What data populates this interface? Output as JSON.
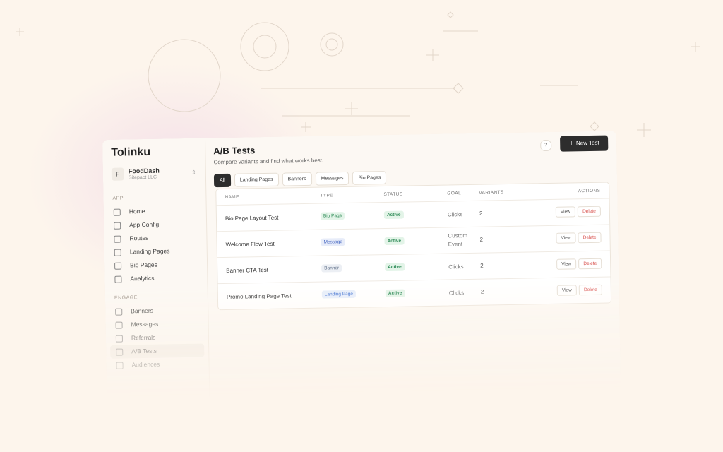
{
  "brand": "Tolinku",
  "org": {
    "initial": "F",
    "name": "FoodDash",
    "sub": "Sitepact LLC"
  },
  "sidebar": [
    {
      "section": "APP",
      "items": [
        "Home",
        "App Config",
        "Routes",
        "Landing Pages",
        "Bio Pages",
        "Analytics"
      ]
    },
    {
      "section": "ENGAGE",
      "items": [
        "Banners",
        "Messages",
        "Referrals",
        "A/B Tests",
        "Audiences"
      ]
    }
  ],
  "active_item": "A/B Tests",
  "header": {
    "title": "A/B Tests",
    "subtitle": "Compare variants and find what works best.",
    "help": "?",
    "button": "New Test"
  },
  "filters": [
    "All",
    "Landing Pages",
    "Banners",
    "Messages",
    "Bio Pages"
  ],
  "table": {
    "columns": [
      "NAME",
      "TYPE",
      "STATUS",
      "GOAL",
      "VARIANTS",
      "ACTIONS"
    ],
    "rows": [
      [
        "Bio Page Layout Test",
        "Bio Page",
        "Active",
        "Clicks",
        "2"
      ],
      [
        "Welcome Flow Test",
        "Message",
        "Active",
        "Custom Event",
        "2"
      ],
      [
        "Banner CTA Test",
        "Banner",
        "Active",
        "Clicks",
        "2"
      ],
      [
        "Promo Landing Page Test",
        "Landing Page",
        "Active",
        "Clicks",
        "2"
      ]
    ],
    "actions": [
      "View",
      "Delete"
    ]
  }
}
